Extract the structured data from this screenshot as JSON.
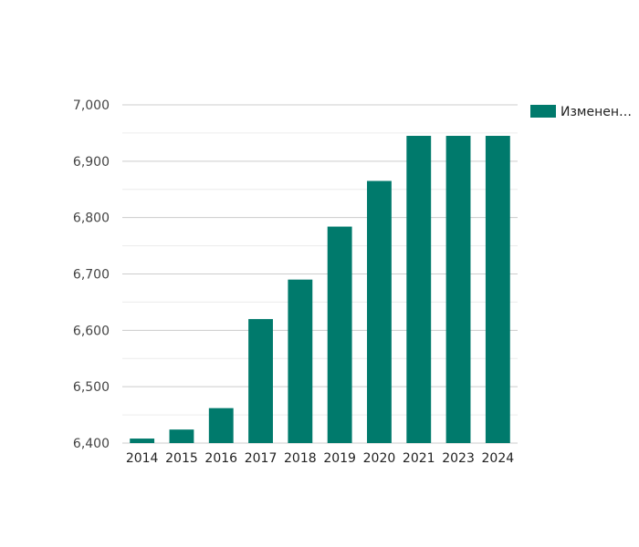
{
  "chart_data": {
    "type": "bar",
    "categories": [
      "2014",
      "2015",
      "2016",
      "2017",
      "2018",
      "2019",
      "2020",
      "2021",
      "2023",
      "2024"
    ],
    "series": [
      {
        "name": "Изменен…",
        "values": [
          6408,
          6424,
          6462,
          6620,
          6690,
          6784,
          6865,
          6945,
          6945,
          6945
        ]
      }
    ],
    "ylim": [
      6400,
      7000
    ],
    "yticks": [
      6400,
      6500,
      6600,
      6700,
      6800,
      6900,
      7000
    ],
    "ytick_labels": [
      "6,400",
      "6,500",
      "6,600",
      "6,700",
      "6,800",
      "6,900",
      "7,000"
    ],
    "title": "",
    "xlabel": "",
    "ylabel": "",
    "grid": true,
    "legend_position": "top-right",
    "colors": {
      "bar": "#007a6c",
      "grid_major": "#cccccc",
      "grid_minor": "#ececec"
    }
  }
}
